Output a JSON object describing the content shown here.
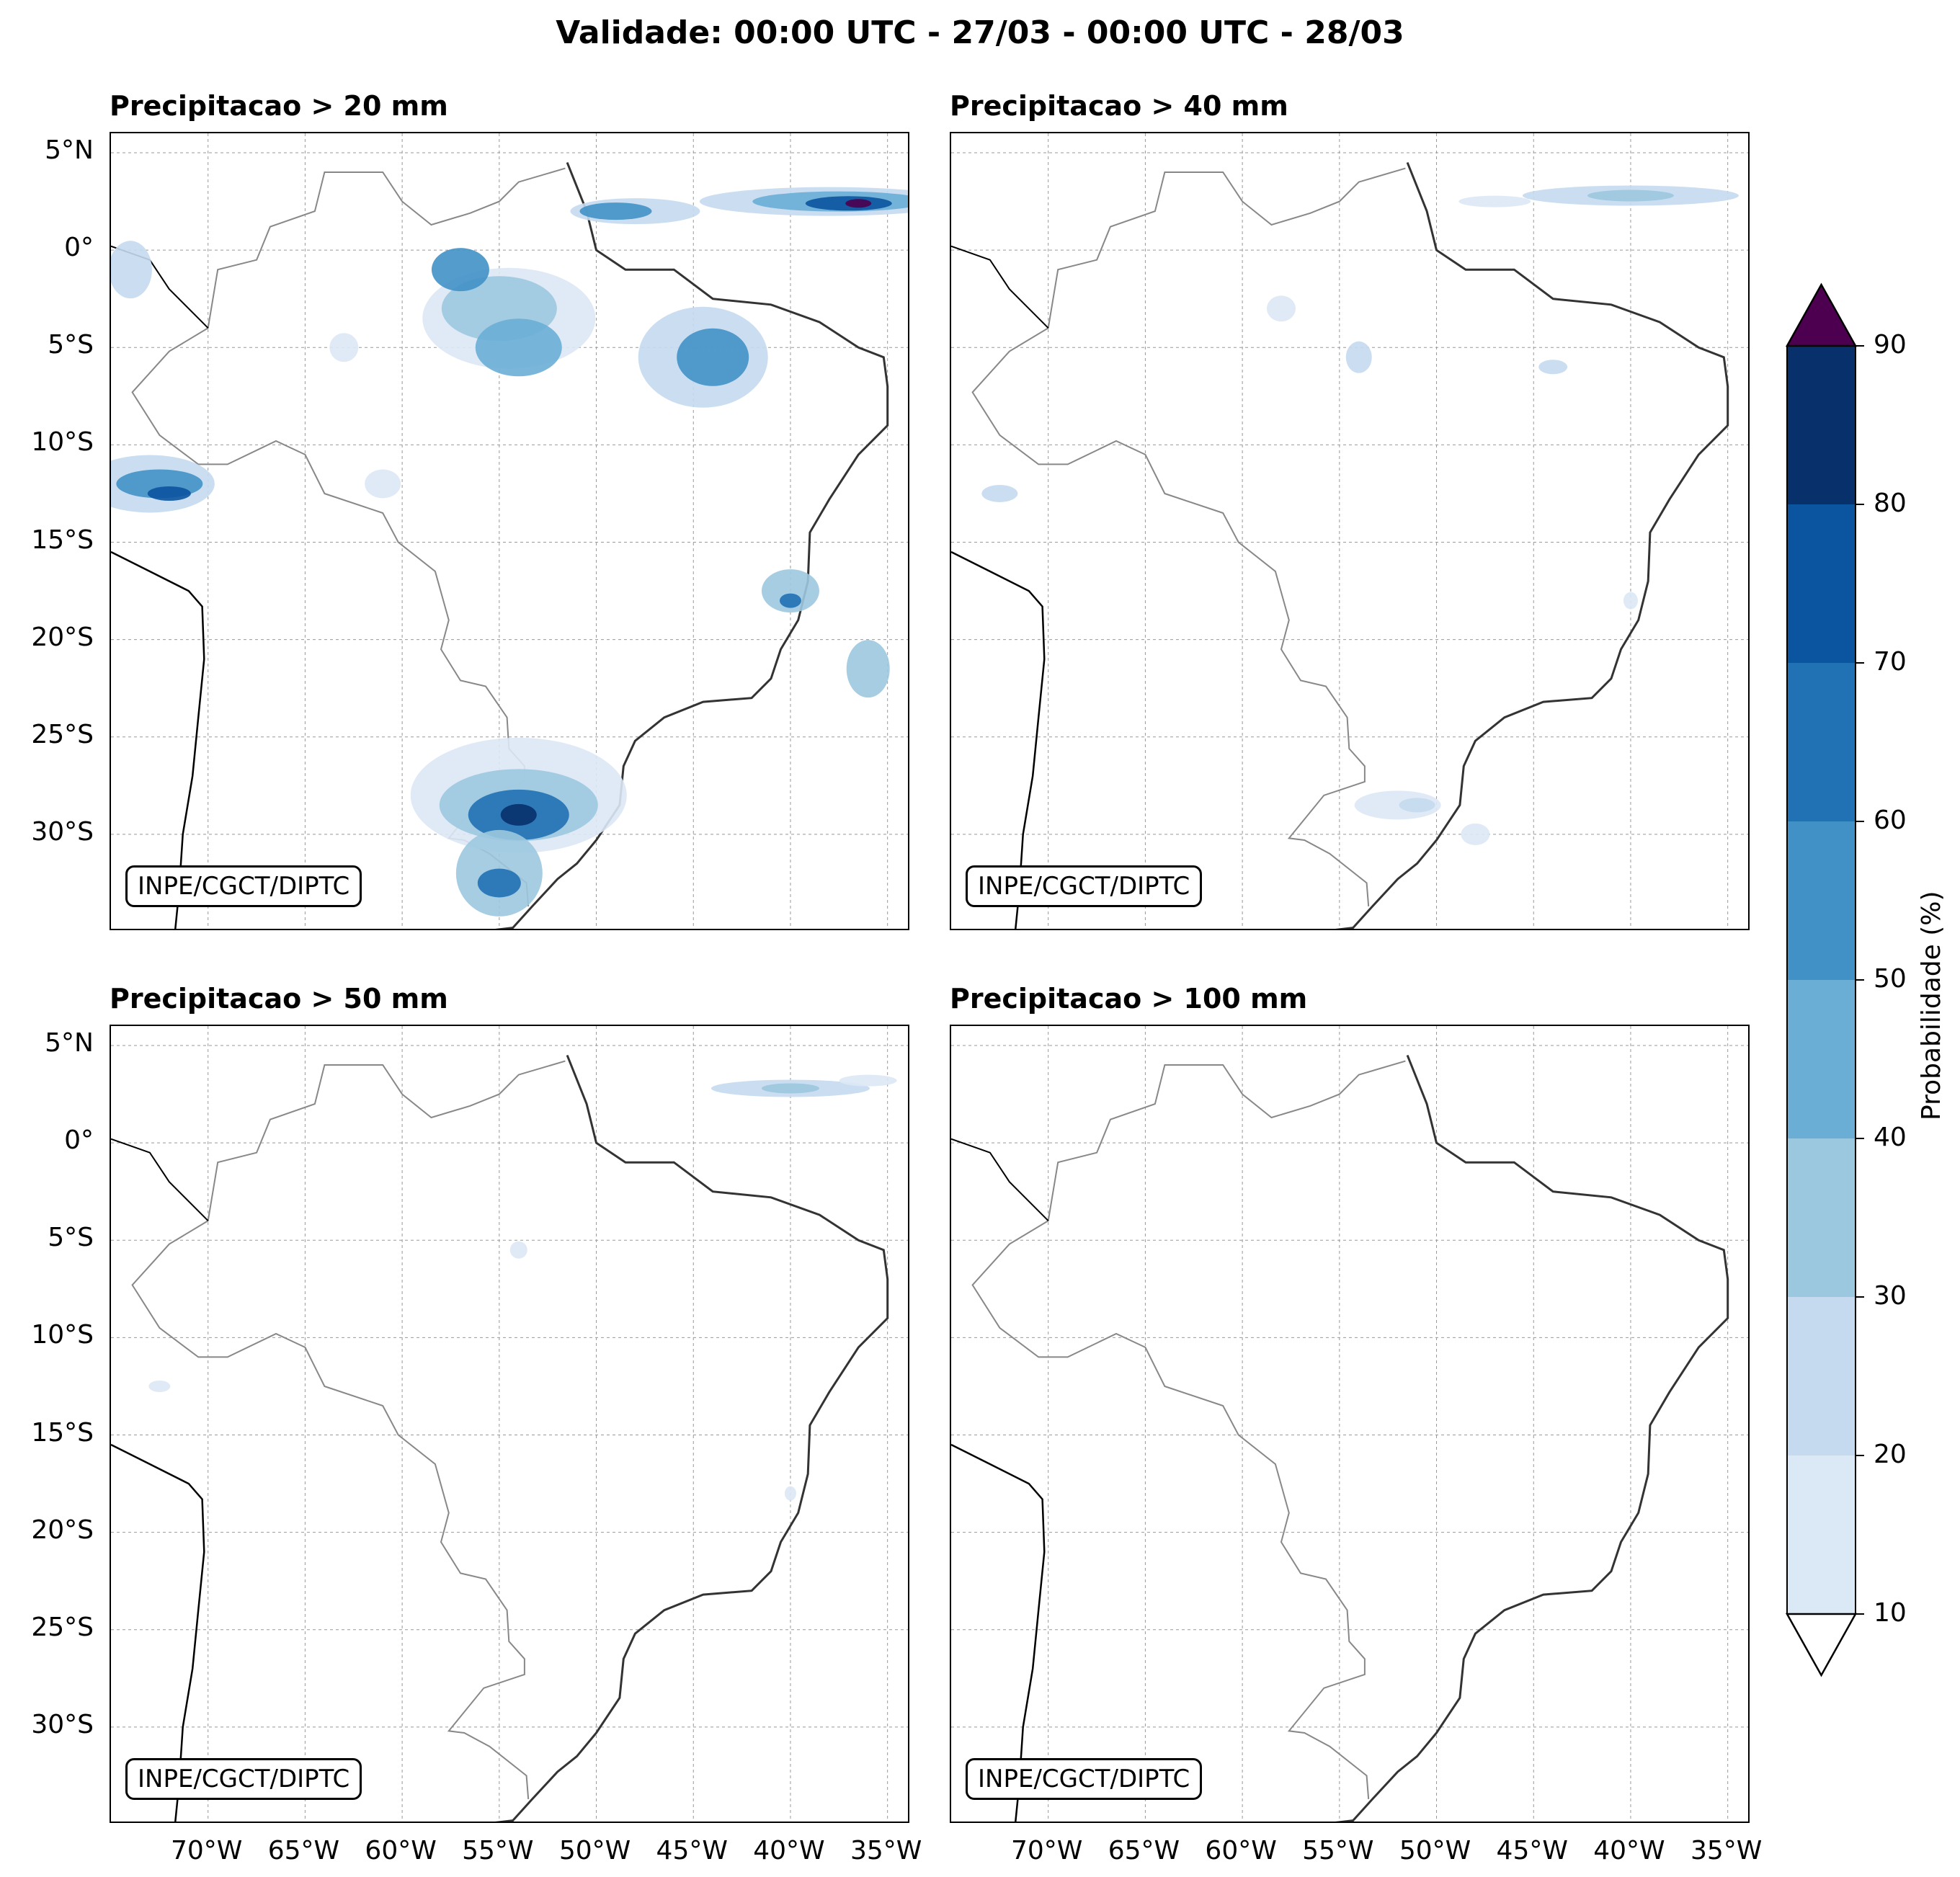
{
  "title": "Validade: 00:00 UTC - 27/03 - 00:00 UTC - 28/03",
  "colors": {
    "country_border": "#000000",
    "state_border": "#888888",
    "grid": "#999999",
    "levels": [
      "#dbe8f5",
      "#c5daef",
      "#9cc8df",
      "#6aaed6",
      "#4191c6",
      "#2171b5",
      "#0b54a0",
      "#08306b",
      "#4d004f"
    ]
  },
  "panels": [
    {
      "title": "Precipitacao > 20 mm",
      "watermark": "INPE/CGCT/DIPTC"
    },
    {
      "title": "Precipitacao > 40 mm",
      "watermark": "INPE/CGCT/DIPTC"
    },
    {
      "title": "Precipitacao > 50 mm",
      "watermark": "INPE/CGCT/DIPTC"
    },
    {
      "title": "Precipitacao > 100 mm",
      "watermark": "INPE/CGCT/DIPTC"
    }
  ],
  "lat_ticks": [
    "5°N",
    "0°",
    "5°S",
    "10°S",
    "15°S",
    "20°S",
    "25°S",
    "30°S"
  ],
  "lon_ticks": [
    "70°W",
    "65°W",
    "60°W",
    "55°W",
    "50°W",
    "45°W",
    "40°W",
    "35°W"
  ],
  "colorbar": {
    "label": "Probabilidade (%)",
    "ticks": [
      "10",
      "20",
      "30",
      "40",
      "50",
      "60",
      "70",
      "80",
      "90"
    ],
    "extend": "both"
  }
}
